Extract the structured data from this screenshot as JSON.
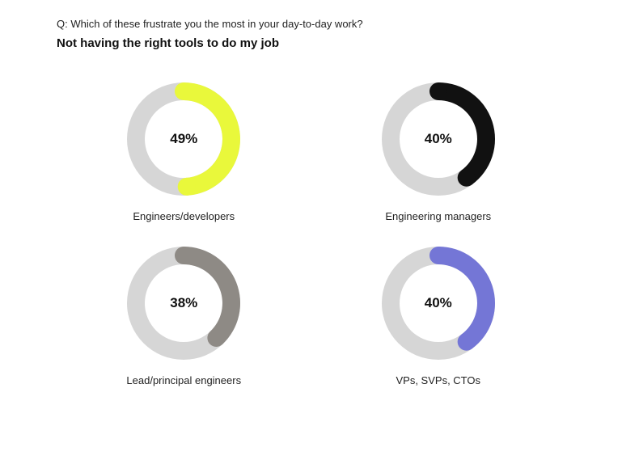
{
  "question_prefix": "Q: ",
  "question_text": "Which of these frustrate you the most in your day-to-day work?",
  "title": "Not having the right tools to do my job",
  "chart": {
    "type": "donut-grid",
    "ring_outer_r": 70,
    "ring_inner_r": 48,
    "track_color": "#d6d6d6",
    "start_angle_deg": 0,
    "sweep_direction": "clockwise",
    "pct_fontsize": 17,
    "caption_fontsize": 13
  },
  "items": [
    {
      "label": "Engineers/developers",
      "value": 49,
      "display": "49%",
      "color": "#e9f83b"
    },
    {
      "label": "Engineering managers",
      "value": 40,
      "display": "40%",
      "color": "#111111"
    },
    {
      "label": "Lead/principal engineers",
      "value": 38,
      "display": "38%",
      "color": "#8e8a85"
    },
    {
      "label": "VPs, SVPs, CTOs",
      "value": 40,
      "display": "40%",
      "color": "#7476d6"
    }
  ]
}
